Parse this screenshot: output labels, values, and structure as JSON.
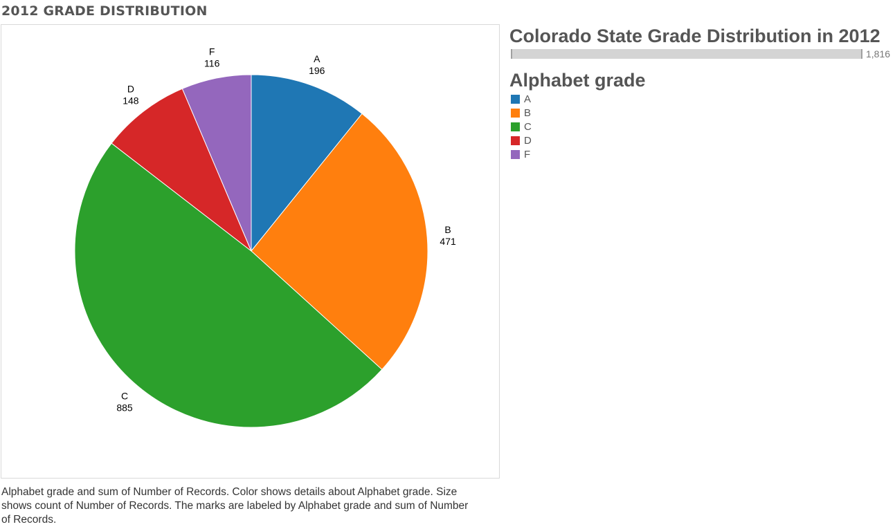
{
  "page": {
    "title": "2012 GRADE DISTRIBUTION",
    "caption": "Alphabet grade and sum of Number of Records.  Color shows details about Alphabet grade.  Size shows count of Number of Records.  The marks are labeled by Alphabet grade and sum of Number of Records."
  },
  "size_legend": {
    "title": "Colorado State Grade Distribution in 2012",
    "value": "1,816"
  },
  "color_legend": {
    "title": "Alphabet grade",
    "items": [
      {
        "label": "A",
        "color": "#1f77b4"
      },
      {
        "label": "B",
        "color": "#ff7f0e"
      },
      {
        "label": "C",
        "color": "#2ca02c"
      },
      {
        "label": "D",
        "color": "#d62728"
      },
      {
        "label": "F",
        "color": "#9467bd"
      }
    ]
  },
  "chart_data": {
    "type": "pie",
    "categories": [
      "A",
      "B",
      "C",
      "D",
      "F"
    ],
    "values": [
      196,
      471,
      885,
      148,
      116
    ],
    "value_labels": [
      "196",
      "471",
      "885",
      "148",
      "116"
    ],
    "colors": [
      "#1f77b4",
      "#ff7f0e",
      "#2ca02c",
      "#d62728",
      "#9467bd"
    ],
    "total": 1816,
    "start": "12 o'clock",
    "direction": "clockwise",
    "legend": "right"
  }
}
